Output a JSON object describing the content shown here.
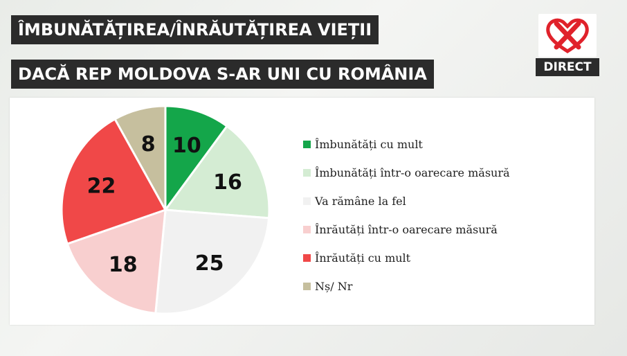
{
  "header": {
    "title_line1": "ÎMBUNĂTĂȚIREA/ÎNRĂUTĂȚIREA VIEȚII",
    "title_line2": "DACĂ REP MOLDOVA S-AR UNI CU ROMÂNIA"
  },
  "logo": {
    "badge_text": "DIRECT",
    "accent_color": "#e0222b"
  },
  "chart_data": {
    "type": "pie",
    "slices": [
      {
        "label": "Îmbunătăți cu mult",
        "value": 10,
        "color": "#14a64a"
      },
      {
        "label": "Îmbunătăți într-o oarecare măsură",
        "value": 16,
        "color": "#d4ecd3"
      },
      {
        "label": "Va rămâne la fel",
        "value": 25,
        "color": "#f1f1f1"
      },
      {
        "label": "Înrăutăți într-o oarecare măsură",
        "value": 18,
        "color": "#f8cfcf"
      },
      {
        "label": "Înrăutăți cu mult",
        "value": 22,
        "color": "#f04848"
      },
      {
        "label": "Nș/ Nr",
        "value": 8,
        "color": "#c6bf9e"
      }
    ],
    "start_angle_deg": 0,
    "direction": "clockwise",
    "legend_position": "right",
    "data_labels": true
  }
}
